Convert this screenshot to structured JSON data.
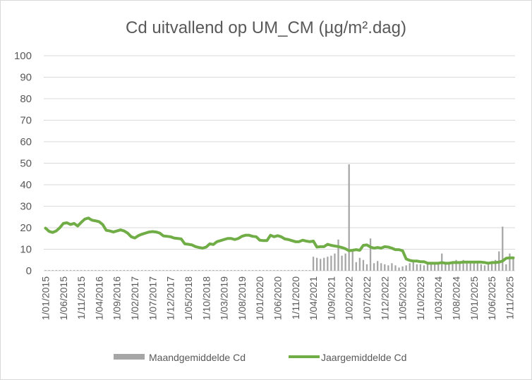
{
  "chart_data": {
    "type": "line",
    "title": "Cd uitvallend op UM_CM (µg/m².dag)",
    "xlabel": "",
    "ylabel": "",
    "ylim": [
      0,
      100
    ],
    "yticks": [
      "0",
      "10",
      "20",
      "30",
      "40",
      "50",
      "60",
      "70",
      "80",
      "90",
      "100"
    ],
    "grid": true,
    "legend_position": "bottom",
    "x_tick_labels": [
      "1/01/2015",
      "1/06/2015",
      "1/11/2015",
      "1/04/2016",
      "1/09/2016",
      "1/02/2017",
      "1/07/2017",
      "1/12/2017",
      "1/05/2018",
      "1/10/2018",
      "1/03/2019",
      "1/08/2019",
      "1/01/2020",
      "1/06/2020",
      "1/11/2020",
      "1/04/2021",
      "1/09/2021",
      "1/02/2022",
      "1/07/2022",
      "1/12/2022",
      "1/05/2023",
      "1/10/2023",
      "1/03/2024",
      "1/08/2024",
      "1/01/2025",
      "1/06/2025",
      "1/11/2025"
    ],
    "x_start": "2015-01",
    "x_end": "2025-12",
    "colors": {
      "monthly": "#a6a6a6",
      "yearly": "#70ad47",
      "grid": "#d9d9d9",
      "text": "#595959"
    },
    "series": [
      {
        "name": "Maandgemiddelde Cd",
        "type": "bar",
        "points": [
          [
            "2015-01",
            0.3
          ],
          [
            "2015-02",
            0.3
          ],
          [
            "2015-03",
            0.3
          ],
          [
            "2015-04",
            0.3
          ],
          [
            "2015-05",
            0.3
          ],
          [
            "2015-06",
            0.3
          ],
          [
            "2015-07",
            0.3
          ],
          [
            "2015-08",
            0.3
          ],
          [
            "2015-09",
            0.3
          ],
          [
            "2015-10",
            0.3
          ],
          [
            "2015-11",
            0.3
          ],
          [
            "2015-12",
            0.3
          ],
          [
            "2016-01",
            0.3
          ],
          [
            "2016-02",
            0.3
          ],
          [
            "2016-03",
            0.3
          ],
          [
            "2016-04",
            0.3
          ],
          [
            "2016-05",
            0.3
          ],
          [
            "2016-06",
            0.3
          ],
          [
            "2016-07",
            0.3
          ],
          [
            "2016-08",
            0.3
          ],
          [
            "2016-09",
            0.3
          ],
          [
            "2016-10",
            0.3
          ],
          [
            "2016-11",
            0.3
          ],
          [
            "2016-12",
            0.3
          ],
          [
            "2017-01",
            0.3
          ],
          [
            "2017-02",
            0.3
          ],
          [
            "2017-03",
            0.3
          ],
          [
            "2017-04",
            0.3
          ],
          [
            "2017-05",
            0.3
          ],
          [
            "2017-06",
            0.3
          ],
          [
            "2017-07",
            0.3
          ],
          [
            "2017-08",
            0.3
          ],
          [
            "2017-09",
            0.3
          ],
          [
            "2017-10",
            0.3
          ],
          [
            "2017-11",
            0.3
          ],
          [
            "2017-12",
            0.3
          ],
          [
            "2018-01",
            0.3
          ],
          [
            "2018-02",
            0.3
          ],
          [
            "2018-03",
            0.3
          ],
          [
            "2018-04",
            0.3
          ],
          [
            "2018-05",
            0.3
          ],
          [
            "2018-06",
            0.3
          ],
          [
            "2018-07",
            0.3
          ],
          [
            "2018-08",
            0.3
          ],
          [
            "2018-09",
            0.3
          ],
          [
            "2018-10",
            0.3
          ],
          [
            "2018-11",
            0.3
          ],
          [
            "2018-12",
            0.3
          ],
          [
            "2019-01",
            0.3
          ],
          [
            "2019-02",
            0.3
          ],
          [
            "2019-03",
            0.3
          ],
          [
            "2019-04",
            0.3
          ],
          [
            "2019-05",
            0.3
          ],
          [
            "2019-06",
            0.3
          ],
          [
            "2019-07",
            0.3
          ],
          [
            "2019-08",
            0.3
          ],
          [
            "2019-09",
            0.3
          ],
          [
            "2019-10",
            0.3
          ],
          [
            "2019-11",
            0.3
          ],
          [
            "2019-12",
            0.3
          ],
          [
            "2020-01",
            0.3
          ],
          [
            "2020-02",
            0.3
          ],
          [
            "2020-03",
            0.3
          ],
          [
            "2020-04",
            0.3
          ],
          [
            "2020-05",
            0.3
          ],
          [
            "2020-06",
            0.3
          ],
          [
            "2020-07",
            0.3
          ],
          [
            "2020-08",
            0.3
          ],
          [
            "2020-09",
            0.3
          ],
          [
            "2020-10",
            0.3
          ],
          [
            "2020-11",
            0.3
          ],
          [
            "2020-12",
            0.3
          ],
          [
            "2021-01",
            0.3
          ],
          [
            "2021-02",
            0.3
          ],
          [
            "2021-03",
            0.3
          ],
          [
            "2021-04",
            6.5
          ],
          [
            "2021-05",
            6
          ],
          [
            "2021-06",
            5.5
          ],
          [
            "2021-07",
            6
          ],
          [
            "2021-08",
            6.5
          ],
          [
            "2021-09",
            7
          ],
          [
            "2021-10",
            8
          ],
          [
            "2021-11",
            14.5
          ],
          [
            "2021-12",
            7
          ],
          [
            "2022-01",
            8
          ],
          [
            "2022-02",
            49.5
          ],
          [
            "2022-03",
            10
          ],
          [
            "2022-04",
            4
          ],
          [
            "2022-05",
            6
          ],
          [
            "2022-06",
            5
          ],
          [
            "2022-07",
            3
          ],
          [
            "2022-08",
            15
          ],
          [
            "2022-09",
            3.5
          ],
          [
            "2022-10",
            4.5
          ],
          [
            "2022-11",
            3.5
          ],
          [
            "2022-12",
            3
          ],
          [
            "2023-01",
            2.5
          ],
          [
            "2023-02",
            3.5
          ],
          [
            "2023-03",
            2.5
          ],
          [
            "2023-04",
            1.5
          ],
          [
            "2023-05",
            2
          ],
          [
            "2023-06",
            2.5
          ],
          [
            "2023-07",
            3.5
          ],
          [
            "2023-08",
            4.5
          ],
          [
            "2023-09",
            3
          ],
          [
            "2023-10",
            3
          ],
          [
            "2023-11",
            2.5
          ],
          [
            "2023-12",
            3
          ],
          [
            "2024-01",
            3
          ],
          [
            "2024-02",
            4
          ],
          [
            "2024-03",
            3.5
          ],
          [
            "2024-04",
            8
          ],
          [
            "2024-05",
            3.5
          ],
          [
            "2024-06",
            3
          ],
          [
            "2024-07",
            3.5
          ],
          [
            "2024-08",
            5
          ],
          [
            "2024-09",
            4
          ],
          [
            "2024-10",
            5
          ],
          [
            "2024-11",
            4
          ],
          [
            "2024-12",
            3.5
          ],
          [
            "2025-01",
            4
          ],
          [
            "2025-02",
            3.5
          ],
          [
            "2025-03",
            3
          ],
          [
            "2025-04",
            2.5
          ],
          [
            "2025-05",
            3
          ],
          [
            "2025-06",
            4
          ],
          [
            "2025-07",
            5
          ],
          [
            "2025-08",
            9
          ],
          [
            "2025-09",
            20.5
          ],
          [
            "2025-10",
            3
          ],
          [
            "2025-11",
            8
          ],
          [
            "2025-12",
            6
          ]
        ]
      },
      {
        "name": "Jaargemiddelde Cd",
        "type": "line",
        "points": [
          [
            "2015-01",
            19.8
          ],
          [
            "2015-02",
            18.3
          ],
          [
            "2015-03",
            17.8
          ],
          [
            "2015-04",
            18.5
          ],
          [
            "2015-05",
            20
          ],
          [
            "2015-06",
            22
          ],
          [
            "2015-07",
            22.3
          ],
          [
            "2015-08",
            21.5
          ],
          [
            "2015-09",
            22
          ],
          [
            "2015-10",
            20.8
          ],
          [
            "2015-11",
            22.5
          ],
          [
            "2015-12",
            24
          ],
          [
            "2016-01",
            24.5
          ],
          [
            "2016-02",
            23.5
          ],
          [
            "2016-03",
            23.2
          ],
          [
            "2016-04",
            22.8
          ],
          [
            "2016-05",
            21.5
          ],
          [
            "2016-06",
            18.8
          ],
          [
            "2016-07",
            18.5
          ],
          [
            "2016-08",
            18
          ],
          [
            "2016-09",
            18.5
          ],
          [
            "2016-10",
            19
          ],
          [
            "2016-11",
            18.5
          ],
          [
            "2016-12",
            17.5
          ],
          [
            "2017-01",
            15.8
          ],
          [
            "2017-02",
            15.2
          ],
          [
            "2017-03",
            16.3
          ],
          [
            "2017-04",
            17
          ],
          [
            "2017-05",
            17.5
          ],
          [
            "2017-06",
            18
          ],
          [
            "2017-07",
            18.2
          ],
          [
            "2017-08",
            18
          ],
          [
            "2017-09",
            17.5
          ],
          [
            "2017-10",
            16.2
          ],
          [
            "2017-11",
            16
          ],
          [
            "2017-12",
            15.8
          ],
          [
            "2018-01",
            15.2
          ],
          [
            "2018-02",
            15
          ],
          [
            "2018-03",
            14.8
          ],
          [
            "2018-04",
            12.5
          ],
          [
            "2018-05",
            12.3
          ],
          [
            "2018-06",
            12
          ],
          [
            "2018-07",
            11.2
          ],
          [
            "2018-08",
            10.8
          ],
          [
            "2018-09",
            10.5
          ],
          [
            "2018-10",
            11
          ],
          [
            "2018-11",
            12.5
          ],
          [
            "2018-12",
            12.2
          ],
          [
            "2019-01",
            13.5
          ],
          [
            "2019-02",
            14
          ],
          [
            "2019-03",
            14.5
          ],
          [
            "2019-04",
            15
          ],
          [
            "2019-05",
            15
          ],
          [
            "2019-06",
            14.5
          ],
          [
            "2019-07",
            15
          ],
          [
            "2019-08",
            16
          ],
          [
            "2019-09",
            16.5
          ],
          [
            "2019-10",
            16.5
          ],
          [
            "2019-11",
            16
          ],
          [
            "2019-12",
            15.8
          ],
          [
            "2020-01",
            14.2
          ],
          [
            "2020-02",
            14
          ],
          [
            "2020-03",
            14
          ],
          [
            "2020-04",
            16.5
          ],
          [
            "2020-05",
            15.8
          ],
          [
            "2020-06",
            16.3
          ],
          [
            "2020-07",
            15.8
          ],
          [
            "2020-08",
            14.8
          ],
          [
            "2020-09",
            14.5
          ],
          [
            "2020-10",
            14
          ],
          [
            "2020-11",
            13.5
          ],
          [
            "2020-12",
            13.5
          ],
          [
            "2021-01",
            14.2
          ],
          [
            "2021-02",
            13.8
          ],
          [
            "2021-03",
            13.5
          ],
          [
            "2021-04",
            13.8
          ],
          [
            "2021-05",
            11
          ],
          [
            "2021-06",
            11.2
          ],
          [
            "2021-07",
            11.2
          ],
          [
            "2021-08",
            12.3
          ],
          [
            "2021-09",
            11.8
          ],
          [
            "2021-10",
            11.5
          ],
          [
            "2021-11",
            11.2
          ],
          [
            "2021-12",
            10.8
          ],
          [
            "2022-01",
            10.2
          ],
          [
            "2022-02",
            9.3
          ],
          [
            "2022-03",
            9.5
          ],
          [
            "2022-04",
            9.8
          ],
          [
            "2022-05",
            9.5
          ],
          [
            "2022-06",
            11.8
          ],
          [
            "2022-07",
            12
          ],
          [
            "2022-08",
            11
          ],
          [
            "2022-09",
            10.5
          ],
          [
            "2022-10",
            10.8
          ],
          [
            "2022-11",
            10.5
          ],
          [
            "2022-12",
            11.2
          ],
          [
            "2023-01",
            11
          ],
          [
            "2023-02",
            10.5
          ],
          [
            "2023-03",
            9.8
          ],
          [
            "2023-04",
            9.8
          ],
          [
            "2023-05",
            9.3
          ],
          [
            "2023-06",
            5.5
          ],
          [
            "2023-07",
            4.8
          ],
          [
            "2023-08",
            4.5
          ],
          [
            "2023-09",
            4.5
          ],
          [
            "2023-10",
            4.2
          ],
          [
            "2023-11",
            4.2
          ],
          [
            "2023-12",
            3.5
          ],
          [
            "2024-01",
            3.5
          ],
          [
            "2024-02",
            3.5
          ],
          [
            "2024-03",
            3.5
          ],
          [
            "2024-04",
            3.8
          ],
          [
            "2024-05",
            3.5
          ],
          [
            "2024-06",
            3.5
          ],
          [
            "2024-07",
            3.8
          ],
          [
            "2024-08",
            3.8
          ],
          [
            "2024-09",
            3.8
          ],
          [
            "2024-10",
            4
          ],
          [
            "2024-11",
            4
          ],
          [
            "2024-12",
            4
          ],
          [
            "2025-01",
            4
          ],
          [
            "2025-02",
            4
          ],
          [
            "2025-03",
            4
          ],
          [
            "2025-04",
            3.8
          ],
          [
            "2025-05",
            3.5
          ],
          [
            "2025-06",
            3.8
          ],
          [
            "2025-07",
            3.8
          ],
          [
            "2025-08",
            4
          ],
          [
            "2025-09",
            4.5
          ],
          [
            "2025-10",
            5.8
          ],
          [
            "2025-11",
            6
          ],
          [
            "2025-12",
            6
          ]
        ]
      }
    ]
  }
}
